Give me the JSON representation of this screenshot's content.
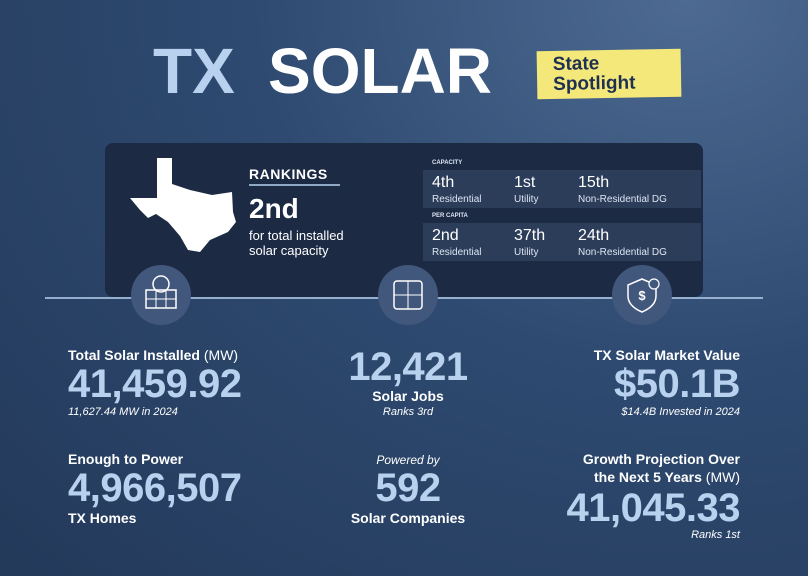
{
  "header": {
    "title": [
      "TX",
      "SOLAR"
    ],
    "badge": [
      "State",
      "Spotlight"
    ]
  },
  "rankings": {
    "heading": "RANKINGS",
    "rank": "2nd",
    "caption": [
      "for total installed",
      "solar capacity"
    ],
    "groups": [
      {
        "label": "CAPACITY",
        "items": [
          {
            "rank": "4th",
            "label": "Residential"
          },
          {
            "rank": "1st",
            "label": "Utility"
          },
          {
            "rank": "15th",
            "label": "Non-Residential DG"
          }
        ]
      },
      {
        "label": "PER CAPITA",
        "items": [
          {
            "rank": "2nd",
            "label": "Residential"
          },
          {
            "rank": "37th",
            "label": "Utility"
          },
          {
            "rank": "24th",
            "label": "Non-Residential DG"
          }
        ]
      }
    ]
  },
  "stats": {
    "installed": {
      "title": "Total Solar Installed",
      "unit": "(MW)",
      "value": "41,459.92",
      "note": "11,627.44 MW in 2024"
    },
    "homes": {
      "title": "Enough to Power",
      "value": "4,966,507",
      "label": "TX Homes"
    },
    "jobs": {
      "value": "12,421",
      "label": "Solar Jobs",
      "note": "Ranks 3rd"
    },
    "companies": {
      "pre": "Powered by",
      "value": "592",
      "label": "Solar Companies"
    },
    "market": {
      "title": "TX Solar Market Value",
      "value": "$50.1B",
      "note": "$14.4B Invested in 2024"
    },
    "growth": {
      "title": [
        "Growth Projection Over",
        "the Next 5 Years"
      ],
      "unit": "(MW)",
      "value": "41,045.33",
      "note": "Ranks 1st"
    }
  }
}
